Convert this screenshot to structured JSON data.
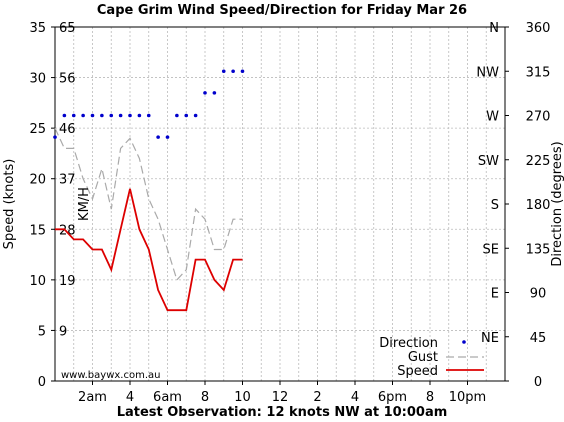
{
  "chart_data": {
    "type": "line",
    "title": "Cape Grim Wind Speed/Direction for Friday Mar 26",
    "footer": "Latest Observation: 12 knots NW at 10:00am",
    "watermark": "www.baywx.com.au",
    "ylabel_left": "Speed (knots)",
    "ylabel_right": "Direction (degrees)",
    "kmh_label": "KM/H",
    "ylim": [
      0,
      35
    ],
    "xlim": [
      0,
      24
    ],
    "dir_ylim": [
      0,
      360
    ],
    "grid": true,
    "legend_position": "bottom-right",
    "yticks_left": [
      "0",
      "5",
      "10",
      "15",
      "20",
      "25",
      "30",
      "35"
    ],
    "kmh_ticks": [
      {
        "label": "9",
        "knots": 5
      },
      {
        "label": "19",
        "knots": 10
      },
      {
        "label": "28",
        "knots": 15
      },
      {
        "label": "37",
        "knots": 20
      },
      {
        "label": "46",
        "knots": 25
      },
      {
        "label": "56",
        "knots": 30
      },
      {
        "label": "65",
        "knots": 35
      }
    ],
    "direction_ticks_right": [
      {
        "label": "0",
        "deg": 0
      },
      {
        "label": "45",
        "deg": 45
      },
      {
        "label": "90",
        "deg": 90
      },
      {
        "label": "135",
        "deg": 135
      },
      {
        "label": "180",
        "deg": 180
      },
      {
        "label": "225",
        "deg": 225
      },
      {
        "label": "270",
        "deg": 270
      },
      {
        "label": "315",
        "deg": 315
      },
      {
        "label": "360",
        "deg": 360
      }
    ],
    "compass_labels": [
      {
        "label": "NE",
        "deg": 45
      },
      {
        "label": "E",
        "deg": 90
      },
      {
        "label": "SE",
        "deg": 135
      },
      {
        "label": "S",
        "deg": 180
      },
      {
        "label": "SW",
        "deg": 225
      },
      {
        "label": "W",
        "deg": 270
      },
      {
        "label": "NW",
        "deg": 315
      },
      {
        "label": "N",
        "deg": 360
      }
    ],
    "xticks": [
      {
        "label": "2am",
        "hour": 2
      },
      {
        "label": "4",
        "hour": 4
      },
      {
        "label": "6am",
        "hour": 6
      },
      {
        "label": "8",
        "hour": 8
      },
      {
        "label": "10",
        "hour": 10
      },
      {
        "label": "12",
        "hour": 12
      },
      {
        "label": "2",
        "hour": 14
      },
      {
        "label": "4",
        "hour": 16
      },
      {
        "label": "6pm",
        "hour": 18
      },
      {
        "label": "8",
        "hour": 20
      },
      {
        "label": "10pm",
        "hour": 22
      }
    ],
    "series": [
      {
        "name": "Speed",
        "color": "#dd0000",
        "style": "solid",
        "points": [
          [
            0,
            15
          ],
          [
            0.5,
            15
          ],
          [
            1,
            14
          ],
          [
            1.5,
            14
          ],
          [
            2,
            13
          ],
          [
            2.5,
            13
          ],
          [
            3,
            11
          ],
          [
            3.5,
            15
          ],
          [
            4,
            19
          ],
          [
            4.5,
            15
          ],
          [
            5,
            13
          ],
          [
            5.5,
            9
          ],
          [
            6,
            7
          ],
          [
            6.5,
            7
          ],
          [
            7,
            7
          ],
          [
            7.5,
            12
          ],
          [
            8,
            12
          ],
          [
            8.5,
            10
          ],
          [
            9,
            9
          ],
          [
            9.5,
            12
          ],
          [
            10,
            12
          ]
        ]
      },
      {
        "name": "Gust",
        "color": "#aaaaaa",
        "style": "dashed",
        "points": [
          [
            0,
            25
          ],
          [
            0.5,
            23
          ],
          [
            1,
            23
          ],
          [
            1.5,
            20
          ],
          [
            2,
            18
          ],
          [
            2.5,
            21
          ],
          [
            3,
            17
          ],
          [
            3.5,
            23
          ],
          [
            4,
            24
          ],
          [
            4.5,
            22
          ],
          [
            5,
            18
          ],
          [
            5.5,
            16
          ],
          [
            6,
            13
          ],
          [
            6.5,
            10
          ],
          [
            7,
            11
          ],
          [
            7.5,
            17
          ],
          [
            8,
            16
          ],
          [
            8.5,
            13
          ],
          [
            9,
            13
          ],
          [
            9.5,
            16
          ],
          [
            10,
            16
          ]
        ]
      },
      {
        "name": "Direction",
        "color": "#0000cc",
        "style": "dots",
        "axis": "right",
        "points": [
          [
            0,
            248
          ],
          [
            0.5,
            270
          ],
          [
            1,
            270
          ],
          [
            1.5,
            270
          ],
          [
            2,
            270
          ],
          [
            2.5,
            270
          ],
          [
            3,
            270
          ],
          [
            3.5,
            270
          ],
          [
            4,
            270
          ],
          [
            4.5,
            270
          ],
          [
            5,
            270
          ],
          [
            5.5,
            248
          ],
          [
            6,
            248
          ],
          [
            6.5,
            270
          ],
          [
            7,
            270
          ],
          [
            7.5,
            270
          ],
          [
            8,
            293
          ],
          [
            8.5,
            293
          ],
          [
            9,
            315
          ],
          [
            9.5,
            315
          ],
          [
            10,
            315
          ]
        ]
      }
    ],
    "legend": [
      "Direction",
      "Gust",
      "Speed"
    ]
  }
}
